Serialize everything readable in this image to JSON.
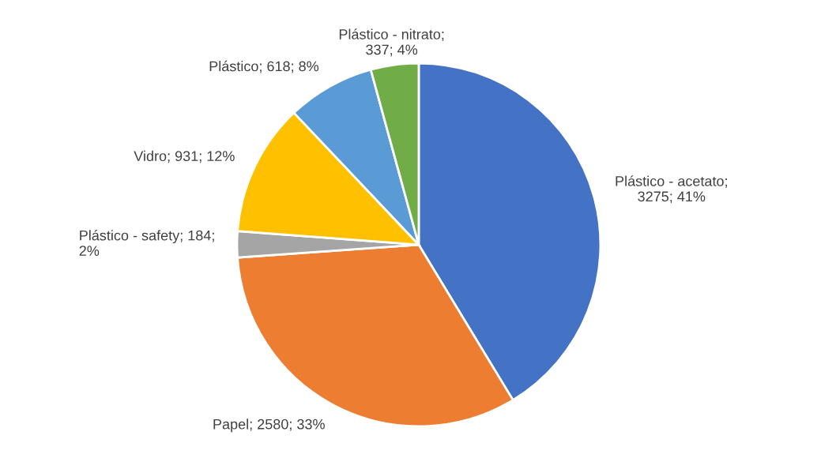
{
  "chart_data": {
    "type": "pie",
    "categories": [
      "Plástico - acetato; 3275; 41%",
      "Papel; 2580; 33%",
      "Plástico - safety; 184; 2%",
      "Vidro; 931; 12%",
      "Plástico; 618; 8%",
      "Plástico - nitrato; 337; 4%"
    ],
    "values": [
      3275,
      2580,
      184,
      931,
      618,
      337
    ],
    "colors": [
      "#4472c4",
      "#ed7d31",
      "#a5a5a5",
      "#ffc000",
      "#5b9bd5",
      "#70ad47"
    ]
  }
}
